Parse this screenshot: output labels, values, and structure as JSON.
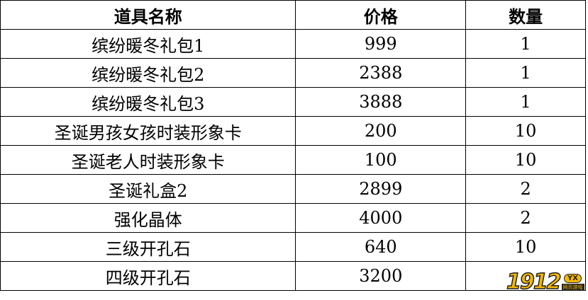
{
  "table": {
    "headers": [
      "道具名称",
      "价格",
      "数量"
    ],
    "rows": [
      [
        "缤纷暖冬礼包1",
        "999",
        "1"
      ],
      [
        "缤纷暖冬礼包2",
        "2388",
        "1"
      ],
      [
        "缤纷暖冬礼包3",
        "3888",
        "1"
      ],
      [
        "圣诞男孩女孩时装形象卡",
        "200",
        "10"
      ],
      [
        "圣诞老人时装形象卡",
        "100",
        "10"
      ],
      [
        "圣诞礼盒2",
        "2899",
        "2"
      ],
      [
        "强化晶体",
        "4000",
        "2"
      ],
      [
        "三级开孔石",
        "640",
        "10"
      ],
      [
        "四级开孔石",
        "3200",
        ""
      ]
    ]
  },
  "watermark": {
    "number": "1912",
    "badge": "YX",
    "subtitle": "网页游戏"
  }
}
